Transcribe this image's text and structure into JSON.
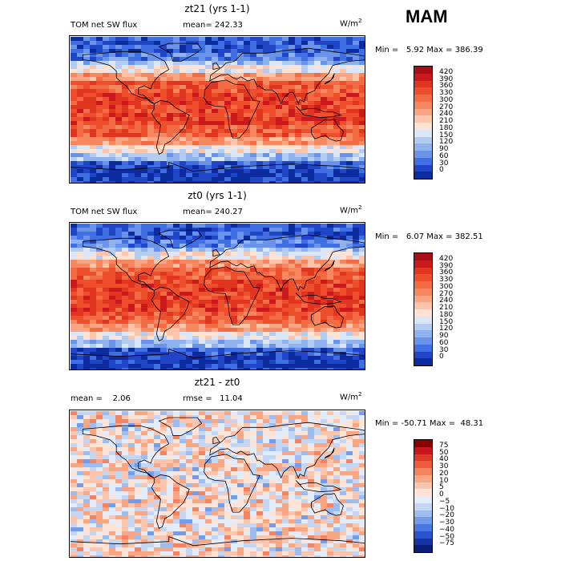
{
  "season": "MAM",
  "panels": [
    {
      "title": "zt21 (yrs 1-1)",
      "left_text": "TOM net SW flux",
      "mid_text": "mean= 242.33",
      "units": "W/m",
      "units_exp": "2",
      "minmax": "Min =   5.92 Max = 386.39",
      "type": "abs",
      "colorbar": {
        "labels": [
          "420",
          "390",
          "360",
          "330",
          "300",
          "270",
          "240",
          "210",
          "180",
          "150",
          "120",
          "90",
          "60",
          "30",
          "0"
        ],
        "colors": [
          "#a50f15",
          "#cb181d",
          "#e03620",
          "#ef4e2c",
          "#f26b44",
          "#f6885f",
          "#f9a584",
          "#fcc4a8",
          "#fde3d4",
          "#dbe7f7",
          "#b3cdf2",
          "#8fb2ee",
          "#6a94ea",
          "#3f6fe3",
          "#2145c7",
          "#0b2b9e"
        ]
      }
    },
    {
      "title": "zt0 (yrs 1-1)",
      "left_text": "TOM net SW flux",
      "mid_text": "mean= 240.27",
      "units": "W/m",
      "units_exp": "2",
      "minmax": "Min =   6.07 Max = 382.51",
      "type": "abs",
      "colorbar": {
        "labels": [
          "420",
          "390",
          "360",
          "330",
          "300",
          "270",
          "240",
          "210",
          "180",
          "150",
          "120",
          "90",
          "60",
          "30",
          "0"
        ],
        "colors": [
          "#a50f15",
          "#cb181d",
          "#e03620",
          "#ef4e2c",
          "#f26b44",
          "#f6885f",
          "#f9a584",
          "#fcc4a8",
          "#fde3d4",
          "#dbe7f7",
          "#b3cdf2",
          "#8fb2ee",
          "#6a94ea",
          "#3f6fe3",
          "#2145c7",
          "#0b2b9e"
        ]
      }
    },
    {
      "title": "zt21 - zt0",
      "left_text": "mean =    2.06",
      "mid_text": "rmse =   11.04",
      "units": "W/m",
      "units_exp": "2",
      "minmax": "Min = -50.71 Max =  48.31",
      "type": "diff",
      "colorbar": {
        "labels": [
          "75",
          "50",
          "40",
          "30",
          "20",
          "10",
          "5",
          "0",
          "−5",
          "−10",
          "−20",
          "−30",
          "−40",
          "−50",
          "−75"
        ],
        "colors": [
          "#8b0000",
          "#c8141c",
          "#de3a28",
          "#ee5a3c",
          "#f6835f",
          "#f9a685",
          "#fbc6ad",
          "#fde4d6",
          "#e3ecfa",
          "#c3d7f5",
          "#9dbdf0",
          "#739ceb",
          "#4a78e3",
          "#2a52d0",
          "#1533a8",
          "#0a1f7a"
        ]
      }
    }
  ]
}
